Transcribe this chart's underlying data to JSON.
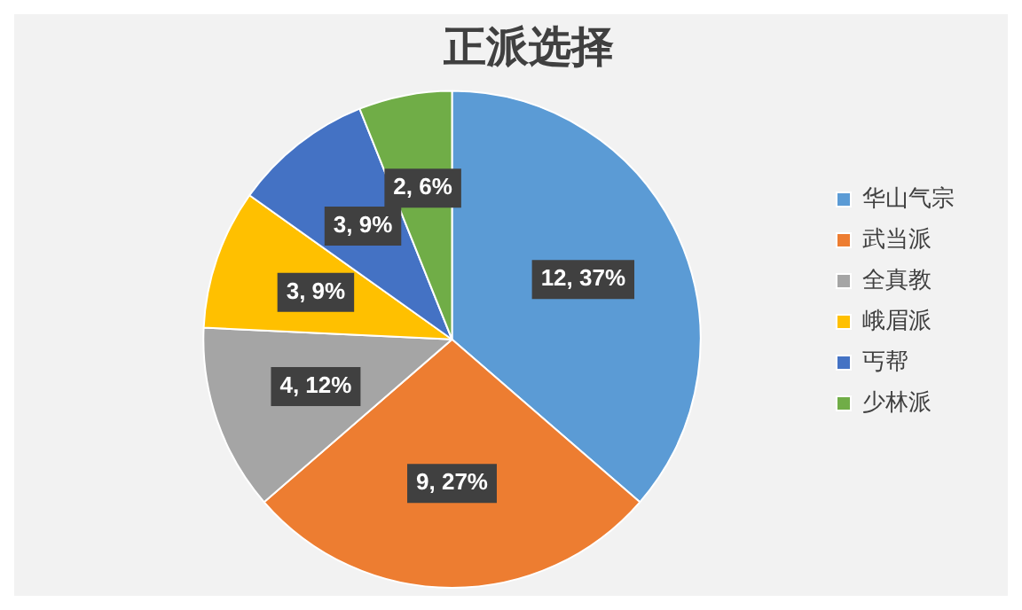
{
  "chart_data": {
    "type": "pie",
    "title": "正派选择",
    "categories": [
      "华山气宗",
      "武当派",
      "全真教",
      "峨眉派",
      "丐帮",
      "少林派"
    ],
    "values": [
      12,
      9,
      4,
      3,
      3,
      2
    ],
    "colors": [
      "#5b9bd5",
      "#ed7d31",
      "#a5a5a5",
      "#ffc000",
      "#4472c4",
      "#70ad47"
    ],
    "value_labels": [
      "12, 37%",
      "9, 27%",
      "4, 12%",
      "3, 9%",
      "3, 9%",
      "2, 6%"
    ],
    "legend": "right"
  }
}
